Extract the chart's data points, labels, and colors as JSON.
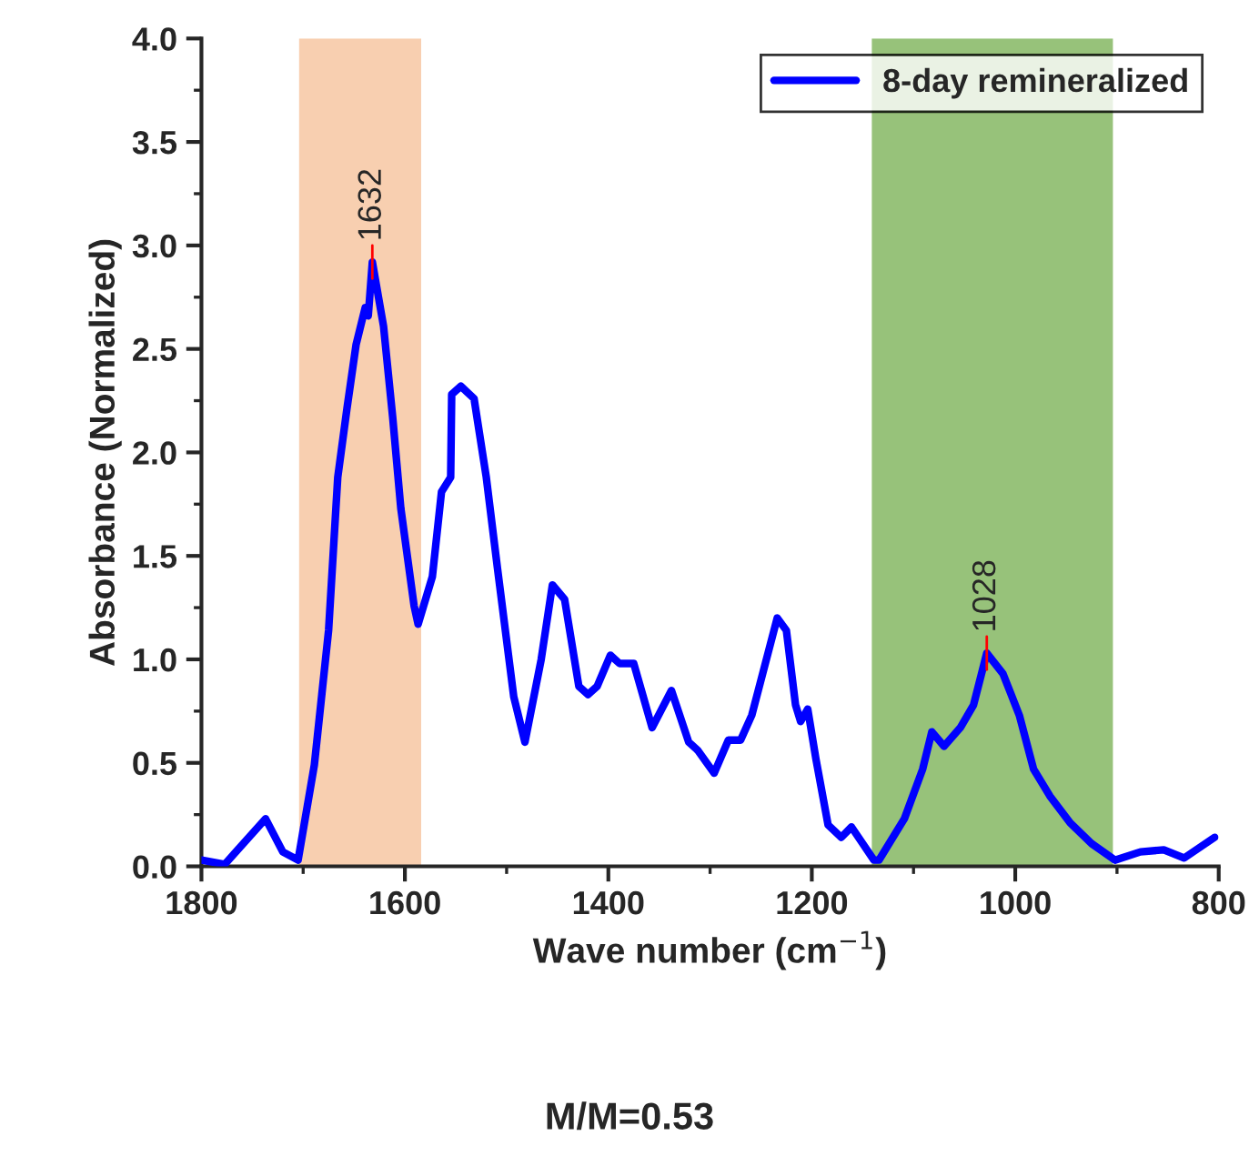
{
  "chart_data": {
    "type": "line",
    "xlabel": "Wave number (cm$^{−1}$)",
    "ylabel": "Absorbance (Normalized)",
    "xlim": [
      1800,
      800
    ],
    "xticks": [
      1800,
      1600,
      1400,
      1200,
      1000,
      800
    ],
    "ylim": [
      0,
      4.0
    ],
    "yticks": [
      {
        "value": 0,
        "label": "0.0"
      },
      0.5,
      {
        "value": 1,
        "label": "1.0"
      },
      1.5,
      {
        "value": 2,
        "label": "2.0"
      },
      2.5,
      {
        "value": 3,
        "label": "3.0"
      },
      3.5,
      {
        "value": 4,
        "label": "4.0"
      }
    ],
    "series": [
      {
        "name": "8-day remineralized",
        "color": "#0000ff",
        "x": [
          1800,
          1777,
          1737,
          1720,
          1705,
          1689,
          1675,
          1666,
          1657,
          1648,
          1639,
          1636,
          1632,
          1621,
          1612,
          1604,
          1591,
          1587,
          1573,
          1564,
          1555,
          1554,
          1545,
          1532,
          1520,
          1509,
          1493,
          1482,
          1466,
          1455,
          1443,
          1429,
          1420,
          1411,
          1398,
          1389,
          1375,
          1357,
          1338,
          1321,
          1312,
          1296,
          1282,
          1270,
          1259,
          1234,
          1225,
          1216,
          1211,
          1204,
          1196,
          1184,
          1171,
          1161,
          1139,
          1134,
          1109,
          1091,
          1082,
          1070,
          1054,
          1041,
          1028,
          1012,
          996,
          982,
          966,
          946,
          925,
          902,
          877,
          854,
          834,
          804
        ],
        "values": [
          0.03,
          0.01,
          0.23,
          0.07,
          0.03,
          0.49,
          1.14,
          1.88,
          2.21,
          2.52,
          2.7,
          2.66,
          2.92,
          2.61,
          2.17,
          1.73,
          1.26,
          1.17,
          1.4,
          1.81,
          1.88,
          2.28,
          2.32,
          2.26,
          1.88,
          1.44,
          0.82,
          0.6,
          1.0,
          1.36,
          1.29,
          0.87,
          0.83,
          0.87,
          1.02,
          0.98,
          0.98,
          0.67,
          0.85,
          0.6,
          0.56,
          0.45,
          0.61,
          0.61,
          0.73,
          1.2,
          1.14,
          0.78,
          0.7,
          0.76,
          0.52,
          0.2,
          0.14,
          0.19,
          0.03,
          0.03,
          0.23,
          0.47,
          0.65,
          0.58,
          0.67,
          0.78,
          1.03,
          0.93,
          0.73,
          0.47,
          0.34,
          0.21,
          0.11,
          0.03,
          0.07,
          0.08,
          0.04,
          0.14
        ]
      }
    ],
    "bands": [
      {
        "axis": "x",
        "from": 1704,
        "to": 1584,
        "color": "#f8cfb0"
      },
      {
        "axis": "x",
        "from": 1141,
        "to": 904,
        "color": "#97c27a"
      }
    ],
    "annotations": [
      {
        "text": "1632",
        "x": 1632,
        "y": 2.92
      },
      {
        "text": "1028",
        "x": 1028,
        "y": 1.03
      },
      "M/M=0.53"
    ],
    "legend": "top right",
    "grid": false,
    "line_style": "solid",
    "marker": "none"
  }
}
